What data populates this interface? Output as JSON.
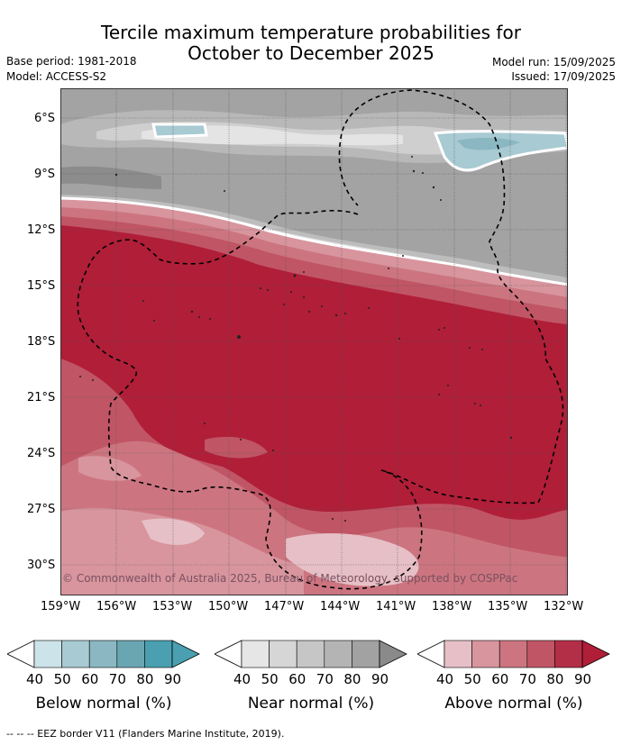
{
  "title_line1": "Tercile maximum temperature probabilities for",
  "title_line2": "October to December 2025",
  "base_period": "Base period: 1981-2018",
  "model": "Model: ACCESS-S2",
  "model_run": "Model run: 15/09/2025",
  "issued": "Issued: 17/09/2025",
  "copyright": "© Commonwealth of Australia 2025, Bureau of Meteorology, supported by COSPPac",
  "lat_labels": [
    "6°S",
    "9°S",
    "12°S",
    "15°S",
    "18°S",
    "21°S",
    "24°S",
    "27°S",
    "30°S"
  ],
  "lon_labels": [
    "159°W",
    "156°W",
    "153°W",
    "150°W",
    "147°W",
    "144°W",
    "141°W",
    "138°W",
    "135°W",
    "132°W"
  ],
  "colorbars": [
    {
      "title": "Below normal (%)",
      "ticks": [
        "40",
        "50",
        "60",
        "70",
        "80",
        "90"
      ],
      "colors": [
        "#cde3ea",
        "#a8cad2",
        "#8ab7c2",
        "#6aa6b2",
        "#4aa0b0"
      ]
    },
    {
      "title": "Near normal (%)",
      "ticks": [
        "40",
        "50",
        "60",
        "70",
        "80",
        "90"
      ],
      "colors": [
        "#e6e6e6",
        "#d6d6d6",
        "#c6c6c6",
        "#b4b4b4",
        "#a2a2a2"
      ]
    },
    {
      "title": "Above normal (%)",
      "ticks": [
        "40",
        "50",
        "60",
        "70",
        "80",
        "90"
      ],
      "colors": [
        "#e6c0c6",
        "#d8959e",
        "#cc7580",
        "#c05566",
        "#b32f47"
      ]
    }
  ],
  "colors": {
    "map_above_max": "#b01e38",
    "map_near": "#9f9f9f",
    "eez_border": "#000000"
  },
  "footer": "--  --  -- EEZ border V11 (Flanders Marine Institute, 2019)."
}
